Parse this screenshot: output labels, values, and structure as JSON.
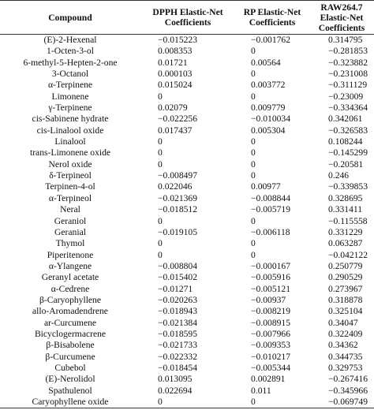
{
  "table": {
    "header": [
      "Compound",
      "DPPH Elastic-Net Coefficients",
      "RP Elastic-Net Coefficients",
      "RAW264.7 Elastic-Net Coefficients"
    ],
    "rows": [
      [
        "(E)-2-Hexenal",
        "−0.015223",
        "−0.001762",
        "0.314795"
      ],
      [
        "1-Octen-3-ol",
        "0.008353",
        "0",
        "−0.281853"
      ],
      [
        "6-methyl-5-Hepten-2-one",
        "0.01721",
        "0.00564",
        "−0.323882"
      ],
      [
        "3-Octanol",
        "0.000103",
        "0",
        "−0.231008"
      ],
      [
        "α-Terpinene",
        "0.015024",
        "0.003772",
        "−0.311129"
      ],
      [
        "Limonene",
        "0",
        "0",
        "−0.23009"
      ],
      [
        "γ-Terpinene",
        "0.02079",
        "0.009779",
        "−0.334364"
      ],
      [
        "cis-Sabinene hydrate",
        "−0.022256",
        "−0.010034",
        "0.342061"
      ],
      [
        "cis-Linalool oxide",
        "0.017437",
        "0.005304",
        "−0.326583"
      ],
      [
        "Linalool",
        "0",
        "0",
        "0.108244"
      ],
      [
        "trans-Limonene oxide",
        "0",
        "0",
        "−0.145299"
      ],
      [
        "Nerol oxide",
        "0",
        "0",
        "−0.20581"
      ],
      [
        "δ-Terpineol",
        "−0.008497",
        "0",
        "0.246"
      ],
      [
        "Terpinen-4-ol",
        "0.022046",
        "0.00977",
        "−0.339853"
      ],
      [
        "α-Terpineol",
        "−0.021369",
        "−0.008844",
        "0.328695"
      ],
      [
        "Neral",
        "−0.018512",
        "−0.005719",
        "0.331411"
      ],
      [
        "Geraniol",
        "0",
        "0",
        "−0.115558"
      ],
      [
        "Geranial",
        "−0.019105",
        "−0.006118",
        "0.331229"
      ],
      [
        "Thymol",
        "0",
        "0",
        "0.063287"
      ],
      [
        "Piperitenone",
        "0",
        "0",
        "−0.042122"
      ],
      [
        "α-Ylangene",
        "−0.008804",
        "−0.000167",
        "0.250779"
      ],
      [
        "Geranyl acetate",
        "−0.015402",
        "−0.005916",
        "0.290529"
      ],
      [
        "α-Cedrene",
        "−0.01271",
        "−0.005121",
        "0.273967"
      ],
      [
        "β-Caryophyllene",
        "−0.020263",
        "−0.00937",
        "0.318878"
      ],
      [
        "allo-Aromadendrene",
        "−0.018943",
        "−0.008219",
        "0.325104"
      ],
      [
        "ar-Curcumene",
        "−0.021384",
        "−0.008915",
        "0.34047"
      ],
      [
        "Bicyclogermacrene",
        "−0.018595",
        "−0.007966",
        "0.322409"
      ],
      [
        "β-Bisabolene",
        "−0.021733",
        "−0.009353",
        "0.34362"
      ],
      [
        "β-Curcumene",
        "−0.022332",
        "−0.010217",
        "0.344735"
      ],
      [
        "Cubebol",
        "−0.018454",
        "−0.005344",
        "0.329753"
      ],
      [
        "(E)-Nerolidol",
        "0.013095",
        "0.002891",
        "−0.267416"
      ],
      [
        "Spathulenol",
        "0.022694",
        "0.011",
        "−0.345966"
      ],
      [
        "Caryophyllene oxide",
        "0",
        "0",
        "−0.069749"
      ]
    ]
  }
}
